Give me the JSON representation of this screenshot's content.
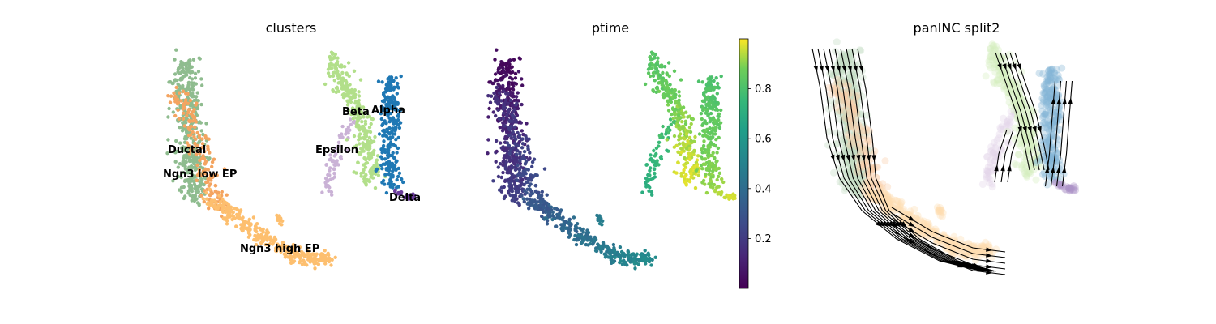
{
  "chart_data": [
    {
      "type": "scatter",
      "title": "clusters",
      "xlabel": "",
      "ylabel": "",
      "axes_visible": false,
      "legend": "on data",
      "categories": [
        "Ductal",
        "Ngn3 low EP",
        "Ngn3 high EP",
        "Epsilon",
        "Beta",
        "Alpha",
        "Delta"
      ],
      "colors": {
        "Ductal": "#8fbc8f",
        "Ngn3 low EP": "#f4a460",
        "Ngn3 high EP": "#fdbf6f",
        "Epsilon": "#cab2d6",
        "Beta": "#b2df8a",
        "Alpha": "#1f78b4",
        "Delta": "#6a3d9a"
      }
    },
    {
      "type": "scatter",
      "title": "ptime",
      "xlabel": "",
      "ylabel": "",
      "axes_visible": false,
      "colormap": "viridis",
      "colorbar": {
        "range": [
          0.0,
          1.0
        ],
        "ticks": [
          0.2,
          0.4,
          0.6,
          0.8
        ],
        "tick_labels": [
          "0.2",
          "0.4",
          "0.6",
          "0.8"
        ]
      }
    },
    {
      "type": "scatter",
      "title": "panINC split2",
      "xlabel": "",
      "ylabel": "",
      "axes_visible": false,
      "overlay": "velocity streamlines with arrowheads",
      "stream_color": "#000000"
    }
  ]
}
